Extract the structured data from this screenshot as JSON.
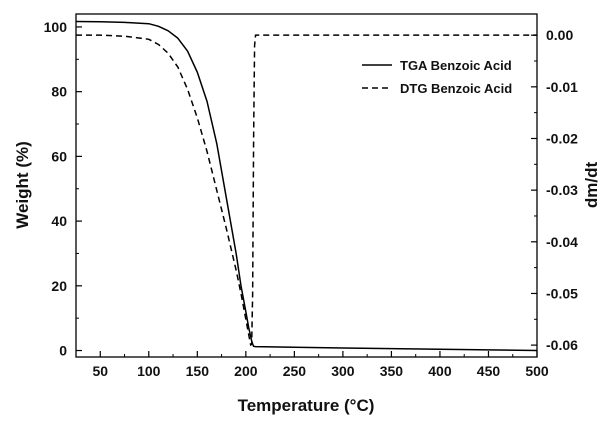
{
  "chart_data": {
    "type": "line",
    "xlabel": "Temperature (°C)",
    "ylabel": "Weight (%)",
    "y2label": "dm/dt",
    "xlim": [
      25,
      500
    ],
    "ylim": [
      -2,
      104
    ],
    "y2lim": [
      -0.0623,
      0.0041
    ],
    "x_ticks": [
      50,
      100,
      150,
      200,
      250,
      300,
      350,
      400,
      450,
      500
    ],
    "y_ticks": [
      0,
      20,
      40,
      60,
      80,
      100
    ],
    "y2_ticks": [
      0.0,
      -0.01,
      -0.02,
      -0.03,
      -0.04,
      -0.05,
      -0.06
    ],
    "y2_tick_labels": [
      "0.00",
      "-0.01",
      "-0.02",
      "-0.03",
      "-0.04",
      "-0.05",
      "-0.06"
    ],
    "grid": false,
    "legend_position": "top-right",
    "series": [
      {
        "name": "TGA Benzoic Acid",
        "axis": "left",
        "style": "solid",
        "color": "#000000",
        "x": [
          25,
          50,
          75,
          100,
          110,
          120,
          130,
          140,
          150,
          160,
          170,
          180,
          190,
          195,
          200,
          203,
          206,
          207,
          208,
          210,
          250,
          300,
          350,
          400,
          450,
          500
        ],
        "y": [
          101.7,
          101.6,
          101.4,
          101.0,
          100.2,
          98.8,
          96.5,
          92.5,
          86.0,
          77.0,
          64.0,
          47.0,
          30.0,
          20.0,
          12.0,
          7.0,
          3.0,
          2.0,
          1.3,
          1.2,
          1.0,
          0.8,
          0.6,
          0.4,
          0.2,
          0.0
        ]
      },
      {
        "name": "DTG Benzoic Acid",
        "axis": "right",
        "style": "dashed",
        "color": "#000000",
        "x": [
          25,
          50,
          75,
          100,
          110,
          120,
          130,
          140,
          150,
          160,
          170,
          180,
          190,
          195,
          200,
          203,
          205,
          206,
          207,
          208,
          209,
          210,
          212,
          250,
          300,
          400,
          500
        ],
        "y": [
          0.0,
          0.0,
          -0.0002,
          -0.0008,
          -0.0018,
          -0.0035,
          -0.0062,
          -0.0105,
          -0.016,
          -0.0225,
          -0.03,
          -0.0375,
          -0.0455,
          -0.05,
          -0.055,
          -0.058,
          -0.06,
          -0.0598,
          -0.05,
          -0.02,
          -0.002,
          0.0,
          0.0,
          0.0,
          0.0,
          0.0,
          0.0
        ]
      }
    ]
  }
}
